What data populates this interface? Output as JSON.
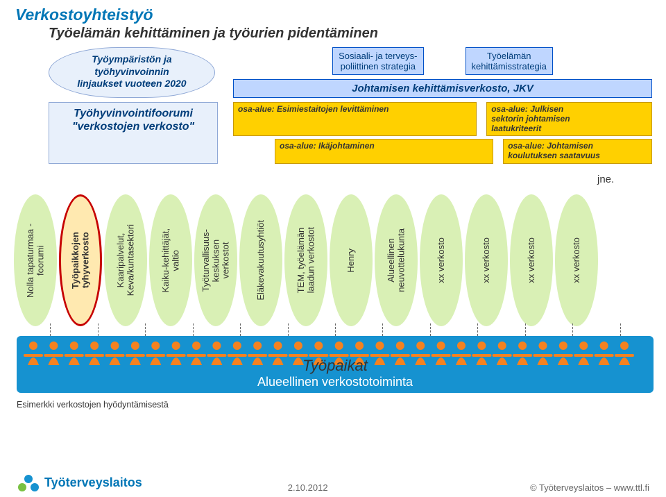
{
  "title": "Verkostoyhteistyö",
  "subtitle": "Työelämän kehittäminen ja työurien pidentäminen",
  "cloud1": "Työympäristön ja\ntyöhyvinvoinnin\nlinjaukset vuoteen 2020",
  "strategy_left": "Sosiaali- ja terveys-\npoliittinen strategia",
  "strategy_right": "Työelämän\nkehittämisstrategia",
  "jkv_band": "Johtamisen kehittämisverkosto, JKV",
  "forum": "Työhyvinvointifoorumi\n\"verkostojen verkosto\"",
  "osa1": "osa-alue: Esimiestaitojen levittäminen",
  "osa2": "osa-alue: Ikäjohtaminen",
  "osa_right1": "osa-alue: Julkisen\nsektorin johtamisen\nlaatukriteerit",
  "osa_right2": "osa-alue: Johtamisen\nkoulutuksen saatavuus",
  "ellipses": [
    {
      "label": "Nolla tapaturmaa -\nfoorumi",
      "bg": "#d9f0b5",
      "bold": false
    },
    {
      "label": "Työpaikkojen\ntyhyverkosto",
      "bg": "#ffe9b0",
      "bold": true,
      "highlight": true
    },
    {
      "label": "Kaaripalvelut,\nKeva/kuntasektori",
      "bg": "#d9f0b5",
      "bold": false
    },
    {
      "label": "Kaiku-kehittäjät,\nvaltio",
      "bg": "#d9f0b5",
      "bold": false
    },
    {
      "label": "Työturvallisuus-\nkeskuksen\nverkostot",
      "bg": "#d9f0b5",
      "bold": false
    },
    {
      "label": "Eläkevakuutusyhtiöt",
      "bg": "#d9f0b5",
      "bold": false
    },
    {
      "label": "TEM, työelämän\nlaadun verkostot",
      "bg": "#d9f0b5",
      "bold": false
    },
    {
      "label": "Henry",
      "bg": "#d9f0b5",
      "bold": false
    },
    {
      "label": "Alueellinen\nneuvottelukunta",
      "bg": "#d9f0b5",
      "bold": false
    },
    {
      "label": "xx verkosto",
      "bg": "#d9f0b5",
      "bold": false
    },
    {
      "label": "xx verkosto",
      "bg": "#d9f0b5",
      "bold": false
    },
    {
      "label": "xx verkosto",
      "bg": "#d9f0b5",
      "bold": false
    },
    {
      "label": "xx verkosto",
      "bg": "#d9f0b5",
      "bold": false
    }
  ],
  "jne": "jne.",
  "band_title": "Työpaikat",
  "band_sub": "Alueellinen verkostotoiminta",
  "band_bg": "#1692d0",
  "people_color": "#f58220",
  "caption": "Esimerkki verkostojen hyödyntämisestä",
  "logo_text": "Työterveyslaitos",
  "foot_date": "2.10.2012",
  "foot_right": "© Työterveyslaitos   –   www.ttl.fi",
  "colors": {
    "title": "#0076b6",
    "cloud_bg": "#e8f0fb",
    "cloud_border": "#8fa8d6",
    "strategy_bg": "#bfd6ff",
    "strategy_border": "#0050c8",
    "yellow": "#ffd000",
    "highlight_border": "#c60000"
  }
}
